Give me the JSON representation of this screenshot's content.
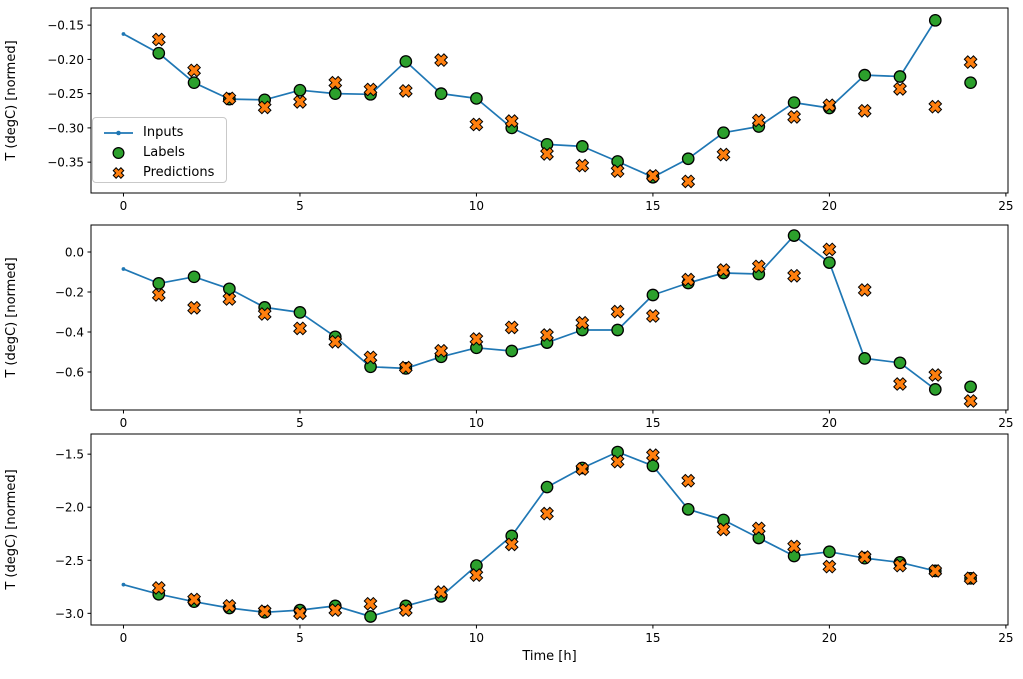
{
  "figure": {
    "xlabel": "Time [h]",
    "ylabel": "T (degC) [normed]",
    "legend": {
      "items": [
        {
          "name": "inputs",
          "label": "Inputs"
        },
        {
          "name": "labels",
          "label": "Labels"
        },
        {
          "name": "predictions",
          "label": "Predictions"
        }
      ]
    },
    "colors": {
      "inputs_line": "#1f77b4",
      "labels_marker": "#2ca02c",
      "predictions_marker": "#ff7f0e",
      "marker_edge": "#000000",
      "spine": "#000000",
      "legend_border": "#c9c9c9"
    }
  },
  "chart_data": [
    {
      "type": "line",
      "panel": 1,
      "ylabel": "T (degC) [normed]",
      "xlabel": "",
      "xlim": [
        -0.92,
        25.06
      ],
      "ylim": [
        -0.395,
        -0.125
      ],
      "xticks": [
        0,
        5,
        10,
        15,
        20,
        25
      ],
      "xtick_labels": [
        "0",
        "5",
        "10",
        "15",
        "20",
        "25"
      ],
      "yticks": [
        -0.15,
        -0.2,
        -0.25,
        -0.3,
        -0.35
      ],
      "ytick_labels": [
        "−0.15",
        "−0.20",
        "−0.25",
        "−0.30",
        "−0.35"
      ],
      "grid": false,
      "legend_position": "upper-left-inside",
      "series": [
        {
          "name": "Inputs",
          "type": "line",
          "marker": "dot",
          "color": "#1f77b4",
          "x": [
            0,
            1,
            2,
            3,
            4,
            5,
            6,
            7,
            8,
            9,
            10,
            11,
            12,
            13,
            14,
            15,
            16,
            17,
            18,
            19,
            20,
            21,
            22,
            23
          ],
          "y": [
            -0.163,
            -0.191,
            -0.234,
            -0.258,
            -0.259,
            -0.245,
            -0.25,
            -0.251,
            -0.203,
            -0.25,
            -0.257,
            -0.3,
            -0.324,
            -0.327,
            -0.349,
            -0.372,
            -0.345,
            -0.307,
            -0.298,
            -0.263,
            -0.271,
            -0.223,
            -0.225,
            -0.143
          ]
        },
        {
          "name": "Labels",
          "type": "scatter",
          "marker": "circle",
          "color": "#2ca02c",
          "x": [
            1,
            2,
            3,
            4,
            5,
            6,
            7,
            8,
            9,
            10,
            11,
            12,
            13,
            14,
            15,
            16,
            17,
            18,
            19,
            20,
            21,
            22,
            23,
            24
          ],
          "y": [
            -0.191,
            -0.234,
            -0.258,
            -0.259,
            -0.245,
            -0.25,
            -0.251,
            -0.203,
            -0.25,
            -0.257,
            -0.3,
            -0.324,
            -0.327,
            -0.349,
            -0.372,
            -0.345,
            -0.307,
            -0.298,
            -0.263,
            -0.271,
            -0.223,
            -0.225,
            -0.143,
            -0.234
          ]
        },
        {
          "name": "Predictions",
          "type": "scatter",
          "marker": "X",
          "color": "#ff7f0e",
          "x": [
            1,
            2,
            3,
            4,
            5,
            6,
            7,
            8,
            9,
            10,
            11,
            12,
            13,
            14,
            15,
            16,
            17,
            18,
            19,
            20,
            21,
            22,
            23,
            24
          ],
          "y": [
            -0.171,
            -0.216,
            -0.257,
            -0.27,
            -0.262,
            -0.234,
            -0.244,
            -0.246,
            -0.201,
            -0.295,
            -0.29,
            -0.338,
            -0.355,
            -0.363,
            -0.37,
            -0.378,
            -0.339,
            -0.289,
            -0.284,
            -0.267,
            -0.275,
            -0.243,
            -0.269,
            -0.204
          ]
        }
      ]
    },
    {
      "type": "line",
      "panel": 2,
      "ylabel": "T (degC) [normed]",
      "xlabel": "",
      "xlim": [
        -0.92,
        25.06
      ],
      "ylim": [
        -0.79,
        0.135
      ],
      "xticks": [
        0,
        5,
        10,
        15,
        20,
        25
      ],
      "xtick_labels": [
        "0",
        "5",
        "10",
        "15",
        "20",
        "25"
      ],
      "yticks": [
        0.0,
        -0.2,
        -0.4,
        -0.6
      ],
      "ytick_labels": [
        "0.0",
        "−0.2",
        "−0.4",
        "−0.6"
      ],
      "grid": false,
      "series": [
        {
          "name": "Inputs",
          "type": "line",
          "marker": "dot",
          "color": "#1f77b4",
          "x": [
            0,
            1,
            2,
            3,
            4,
            5,
            6,
            7,
            8,
            9,
            10,
            11,
            12,
            13,
            14,
            15,
            16,
            17,
            18,
            19,
            20,
            21,
            22,
            23
          ],
          "y": [
            -0.085,
            -0.157,
            -0.124,
            -0.184,
            -0.277,
            -0.302,
            -0.424,
            -0.574,
            -0.582,
            -0.524,
            -0.479,
            -0.495,
            -0.453,
            -0.39,
            -0.39,
            -0.215,
            -0.155,
            -0.105,
            -0.11,
            0.082,
            -0.053,
            -0.532,
            -0.554,
            -0.687
          ]
        },
        {
          "name": "Labels",
          "type": "scatter",
          "marker": "circle",
          "color": "#2ca02c",
          "x": [
            1,
            2,
            3,
            4,
            5,
            6,
            7,
            8,
            9,
            10,
            11,
            12,
            13,
            14,
            15,
            16,
            17,
            18,
            19,
            20,
            21,
            22,
            23,
            24
          ],
          "y": [
            -0.157,
            -0.124,
            -0.184,
            -0.277,
            -0.302,
            -0.424,
            -0.574,
            -0.582,
            -0.524,
            -0.479,
            -0.495,
            -0.453,
            -0.39,
            -0.39,
            -0.215,
            -0.155,
            -0.105,
            -0.11,
            0.082,
            -0.053,
            -0.532,
            -0.554,
            -0.687,
            -0.674
          ]
        },
        {
          "name": "Predictions",
          "type": "scatter",
          "marker": "X",
          "color": "#ff7f0e",
          "x": [
            1,
            2,
            3,
            4,
            5,
            6,
            7,
            8,
            9,
            10,
            11,
            12,
            13,
            14,
            15,
            16,
            17,
            18,
            19,
            20,
            21,
            22,
            23,
            24
          ],
          "y": [
            -0.215,
            -0.279,
            -0.235,
            -0.31,
            -0.382,
            -0.449,
            -0.527,
            -0.578,
            -0.494,
            -0.435,
            -0.377,
            -0.415,
            -0.354,
            -0.298,
            -0.32,
            -0.138,
            -0.09,
            -0.072,
            -0.119,
            0.013,
            -0.19,
            -0.66,
            -0.615,
            -0.745
          ]
        }
      ]
    },
    {
      "type": "line",
      "panel": 3,
      "ylabel": "T (degC) [normed]",
      "xlabel": "Time [h]",
      "xlim": [
        -0.92,
        25.06
      ],
      "ylim": [
        -3.11,
        -1.31
      ],
      "xticks": [
        0,
        5,
        10,
        15,
        20,
        25
      ],
      "xtick_labels": [
        "0",
        "5",
        "10",
        "15",
        "20",
        "25"
      ],
      "yticks": [
        -1.5,
        -2.0,
        -2.5,
        -3.0
      ],
      "ytick_labels": [
        "−1.5",
        "−2.0",
        "−2.5",
        "−3.0"
      ],
      "grid": false,
      "series": [
        {
          "name": "Inputs",
          "type": "line",
          "marker": "dot",
          "color": "#1f77b4",
          "x": [
            0,
            1,
            2,
            3,
            4,
            5,
            6,
            7,
            8,
            9,
            10,
            11,
            12,
            13,
            14,
            15,
            16,
            17,
            18,
            19,
            20,
            21,
            22,
            23
          ],
          "y": [
            -2.73,
            -2.82,
            -2.89,
            -2.95,
            -2.99,
            -2.97,
            -2.93,
            -3.03,
            -2.93,
            -2.84,
            -2.55,
            -2.27,
            -1.81,
            -1.63,
            -1.48,
            -1.61,
            -2.02,
            -2.12,
            -2.29,
            -2.46,
            -2.42,
            -2.48,
            -2.52,
            -2.6
          ]
        },
        {
          "name": "Labels",
          "type": "scatter",
          "marker": "circle",
          "color": "#2ca02c",
          "x": [
            1,
            2,
            3,
            4,
            5,
            6,
            7,
            8,
            9,
            10,
            11,
            12,
            13,
            14,
            15,
            16,
            17,
            18,
            19,
            20,
            21,
            22,
            23,
            24
          ],
          "y": [
            -2.82,
            -2.89,
            -2.95,
            -2.99,
            -2.97,
            -2.93,
            -3.03,
            -2.93,
            -2.84,
            -2.55,
            -2.27,
            -1.81,
            -1.63,
            -1.48,
            -1.61,
            -2.02,
            -2.12,
            -2.29,
            -2.46,
            -2.42,
            -2.48,
            -2.52,
            -2.6,
            -2.67
          ]
        },
        {
          "name": "Predictions",
          "type": "scatter",
          "marker": "X",
          "color": "#ff7f0e",
          "x": [
            1,
            2,
            3,
            4,
            5,
            6,
            7,
            8,
            9,
            10,
            11,
            12,
            13,
            14,
            15,
            16,
            17,
            18,
            19,
            20,
            21,
            22,
            23,
            24
          ],
          "y": [
            -2.76,
            -2.87,
            -2.93,
            -2.98,
            -3.0,
            -2.97,
            -2.91,
            -2.97,
            -2.8,
            -2.64,
            -2.35,
            -2.06,
            -1.64,
            -1.57,
            -1.51,
            -1.75,
            -2.21,
            -2.2,
            -2.37,
            -2.56,
            -2.47,
            -2.55,
            -2.6,
            -2.67
          ]
        }
      ]
    }
  ]
}
